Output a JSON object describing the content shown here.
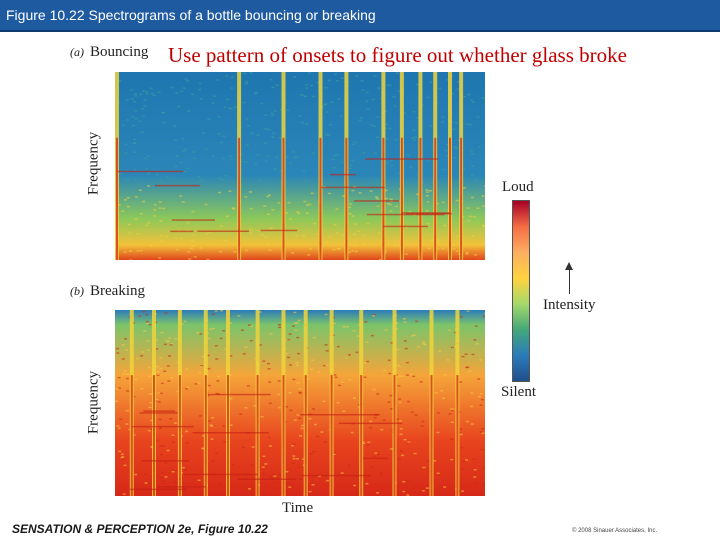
{
  "header": {
    "title": "Figure 10.22 Spectrograms of a bottle bouncing or breaking"
  },
  "annotation": "Use pattern of onsets to figure out whether glass broke",
  "panels": [
    {
      "letter": "(a)",
      "label": "Bouncing",
      "ylabel": "Frequency"
    },
    {
      "letter": "(b)",
      "label": "Breaking",
      "ylabel": "Frequency",
      "xlabel": "Time"
    }
  ],
  "colorbar": {
    "top_label": "Loud",
    "bottom_label": "Silent",
    "axis_label": "Intensity",
    "colors": [
      "#a50026",
      "#f46d43",
      "#fdae61",
      "#ffd23f",
      "#a6d96a",
      "#43a878",
      "#2b7bba",
      "#1f4e8c"
    ]
  },
  "footer": {
    "left": "SENSATION & PERCEPTION 2e, Figure 10.22",
    "right": "© 2008 Sinauer Associates, Inc."
  }
}
